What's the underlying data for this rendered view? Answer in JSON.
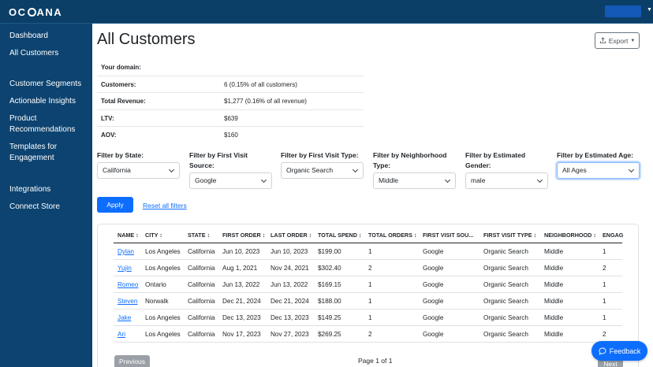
{
  "app": {
    "logo_text_1": "OC",
    "logo_text_2": "ANA"
  },
  "sidebar": {
    "items": [
      {
        "label": "Dashboard"
      },
      {
        "label": "All Customers"
      },
      {
        "label": "Customer Segments"
      },
      {
        "label": "Actionable Insights"
      },
      {
        "label": "Product Recommendations"
      },
      {
        "label": "Templates for Engagement"
      },
      {
        "label": "Integrations"
      },
      {
        "label": "Connect Store"
      }
    ]
  },
  "page": {
    "title": "All Customers",
    "export_label": "Export"
  },
  "stats": [
    {
      "label": "Your domain:",
      "value": ""
    },
    {
      "label": "Customers:",
      "value": "6 (0.15% of all customers)"
    },
    {
      "label": "Total Revenue:",
      "value": "$1,277 (0.16% of all revenue)"
    },
    {
      "label": "LTV:",
      "value": "$639"
    },
    {
      "label": "AOV:",
      "value": "$160"
    }
  ],
  "filters": [
    {
      "label": "Filter by State:",
      "value": "California"
    },
    {
      "label": "Filter by First Visit Source:",
      "value": "Google"
    },
    {
      "label": "Filter by First Visit Type:",
      "value": "Organic Search"
    },
    {
      "label": "Filter by Neighborhood Type:",
      "value": "Middle"
    },
    {
      "label": "Filter by Estimated Gender:",
      "value": "male"
    },
    {
      "label": "Filter by Estimated Age:",
      "value": "All Ages"
    }
  ],
  "actions": {
    "apply_label": "Apply",
    "reset_label": "Reset all filters"
  },
  "table": {
    "columns": [
      "NAME ↕",
      "CITY ↕",
      "STATE ↕",
      "FIRST ORDER ↕",
      "LAST ORDER ↕",
      "TOTAL SPEND ↕",
      "TOTAL ORDERS ↕",
      "FIRST VISIT SOU...",
      "FIRST VISIT TYPE ↕",
      "NEIGHBORHOOD ↕",
      "ENGAG"
    ],
    "rows": [
      [
        "Dylan",
        "Los Angeles",
        "California",
        "Jun 10, 2023",
        "Jun 10, 2023",
        "$199.00",
        "1",
        "Google",
        "Organic Search",
        "Middle",
        "1"
      ],
      [
        "Yujin",
        "Los Angeles",
        "California",
        "Aug 1, 2021",
        "Nov 24, 2021",
        "$302.40",
        "2",
        "Google",
        "Organic Search",
        "Middle",
        "2"
      ],
      [
        "Romeo",
        "Ontario",
        "California",
        "Jun 13, 2022",
        "Jun 13, 2022",
        "$169.15",
        "1",
        "Google",
        "Organic Search",
        "Middle",
        "1"
      ],
      [
        "Steven",
        "Norwalk",
        "California",
        "Dec 21, 2024",
        "Dec 21, 2024",
        "$188.00",
        "1",
        "Google",
        "Organic Search",
        "Middle",
        "1"
      ],
      [
        "Jake",
        "Los Angeles",
        "California",
        "Dec 13, 2023",
        "Dec 13, 2023",
        "$149.25",
        "1",
        "Google",
        "Organic Search",
        "Middle",
        "1"
      ],
      [
        "Ari",
        "Los Angeles",
        "California",
        "Nov 17, 2023",
        "Nov 27, 2023",
        "$269.25",
        "2",
        "Google",
        "Organic Search",
        "Middle",
        "2"
      ]
    ]
  },
  "pagination": {
    "previous_label": "Previous",
    "page_info": "Page 1 of 1",
    "next_label": "Next"
  },
  "feedback": {
    "label": "Feedback"
  },
  "colors": {
    "sidebar": "#0d4370",
    "topbar": "#0b3f67",
    "primary": "#0d6efd"
  }
}
